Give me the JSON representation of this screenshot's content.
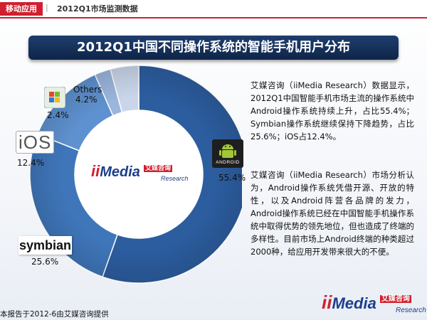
{
  "header": {
    "tag": "移动应用",
    "crumb": "2012Q1市场监测数据"
  },
  "title": "2012Q1中国不同操作系统的智能手机用户分布",
  "chart_data": {
    "type": "pie",
    "title": "2012Q1中国不同操作系统的智能手机用户分布",
    "slices": [
      {
        "name": "Android",
        "value": 55.4,
        "label": "55.4%",
        "color": "#2c5d9f"
      },
      {
        "name": "Symbian",
        "value": 25.6,
        "label": "25.6%",
        "color": "#3f76ba"
      },
      {
        "name": "iOS",
        "value": 12.4,
        "label": "12.4%",
        "color": "#5e91cf"
      },
      {
        "name": "Windows Mobile",
        "value": 2.4,
        "label": "2.4%",
        "color": "#9bb5dc"
      },
      {
        "name": "Others",
        "value": 4.2,
        "label": "4.2%",
        "color": "#c9d6ea"
      }
    ],
    "donut": true
  },
  "labels": {
    "others_name": "Others",
    "android_logo": "ANDROID",
    "symbian_logo": "symbian",
    "ios_logo": "iOS"
  },
  "center_logo": {
    "ii": "ii",
    "media": "Media",
    "cn": "艾媒咨询",
    "research": "Research"
  },
  "paragraphs": [
    "艾媒咨询（iiMedia Research）数据显示，2012Q1中国智能手机市场主流的操作系统中Android操作系统持续上升，占比55.4%；Symbian操作系统继续保持下降趋势，占比25.6%；iOS占12.4%。",
    "艾媒咨询（iiMedia Research）市场分析认为，Android操作系统凭借开源、开放的特性，以及Android阵营各品牌的发力，Android操作系统已经在中国智能手机操作系统中取得优势的领先地位，但也造成了终端的多样性。目前市场上Android终端的种类超过2000种，给应用开发带来很大的不便。"
  ],
  "footer": "本报告于2012-6由艾媒咨询提供",
  "colors": {
    "accent": "#d01f2e",
    "navy": "#0e2548"
  }
}
